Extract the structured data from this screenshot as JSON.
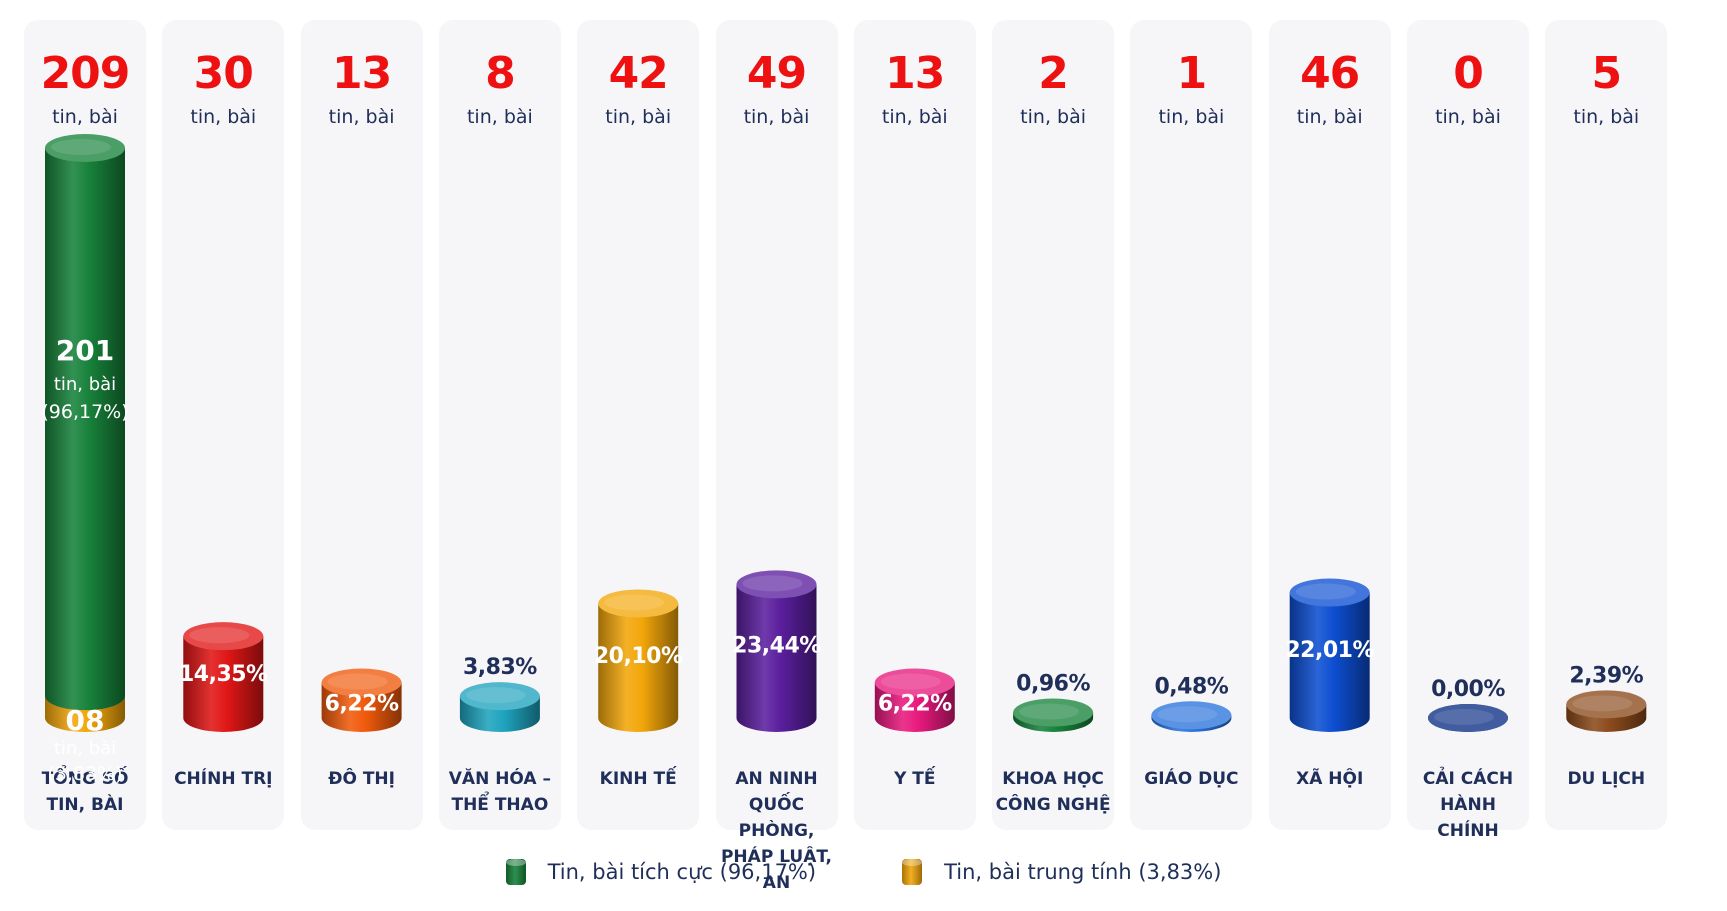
{
  "chart_data": {
    "type": "bar",
    "unit_label": "tin, bài",
    "categories": [
      [
        "TỔNG SỐ",
        "TIN, BÀI"
      ],
      [
        "CHÍNH TRỊ"
      ],
      [
        "ĐÔ THỊ"
      ],
      [
        "VĂN HÓA –",
        "THỂ THAO"
      ],
      [
        "KINH TẾ"
      ],
      [
        "AN NINH",
        "QUỐC PHÒNG,",
        "PHÁP LUẬT,",
        "AN"
      ],
      [
        "Y TẾ"
      ],
      [
        "KHOA HỌC",
        "CÔNG NGHỆ"
      ],
      [
        "GIÁO DỤC"
      ],
      [
        "XÃ HỘI"
      ],
      [
        "CẢI CÁCH",
        "HÀNH CHÍNH"
      ],
      [
        "DU LỊCH"
      ]
    ],
    "values": [
      209,
      30,
      13,
      8,
      42,
      49,
      13,
      2,
      1,
      46,
      0,
      5
    ],
    "percent_labels": [
      "",
      "14,35%",
      "6,22%",
      "3,83%",
      "20,10%",
      "23,44%",
      "6,22%",
      "0,96%",
      "0,48%",
      "22,01%",
      "0,00%",
      "2,39%"
    ],
    "bar_colors": [
      "#17823b",
      "#e01616",
      "#f05a0c",
      "#1fa3be",
      "#f2a60a",
      "#5b1f9e",
      "#e8197e",
      "#17823b",
      "#2b73dd",
      "#0d4fd2",
      "#0b2f85",
      "#8b4a1c"
    ],
    "total_split": {
      "positive": {
        "value": "201",
        "unit": "tin, bài",
        "percent": "(96,17%)",
        "count": 201,
        "color": "#17823b"
      },
      "neutral": {
        "value": "08",
        "unit": "tin, bài",
        "percent": "(3,83%)",
        "count": 8,
        "color": "#f2a60a"
      }
    },
    "legend": [
      {
        "label": "Tin, bài tích cực (96,17%)",
        "color": "#17823b"
      },
      {
        "label": "Tin, bài trung tính (3,83%)",
        "color": "#f2a60a"
      }
    ],
    "legend_position": "bottom",
    "grid": false
  }
}
